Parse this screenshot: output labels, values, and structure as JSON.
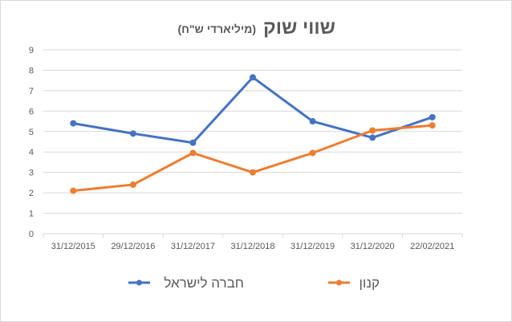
{
  "chart_data": {
    "type": "line",
    "title": "שווי שוק",
    "subtitle": "(מיליארדי ש\"ח)",
    "categories": [
      "31/12/2015",
      "29/12/2016",
      "31/12/2017",
      "31/12/2018",
      "31/12/2019",
      "31/12/2020",
      "22/02/2021"
    ],
    "series": [
      {
        "name": "חברה לישראל",
        "color": "#4472C4",
        "values": [
          5.4,
          4.9,
          4.45,
          7.65,
          5.5,
          4.7,
          5.7
        ]
      },
      {
        "name": "קנון",
        "color": "#ED7D31",
        "values": [
          2.1,
          2.4,
          3.95,
          3.0,
          3.95,
          5.05,
          5.3
        ]
      }
    ],
    "ylim": [
      0,
      9
    ],
    "yticks": [
      0,
      1,
      2,
      3,
      4,
      5,
      6,
      7,
      8,
      9
    ],
    "grid": true,
    "legend": "bottom"
  }
}
